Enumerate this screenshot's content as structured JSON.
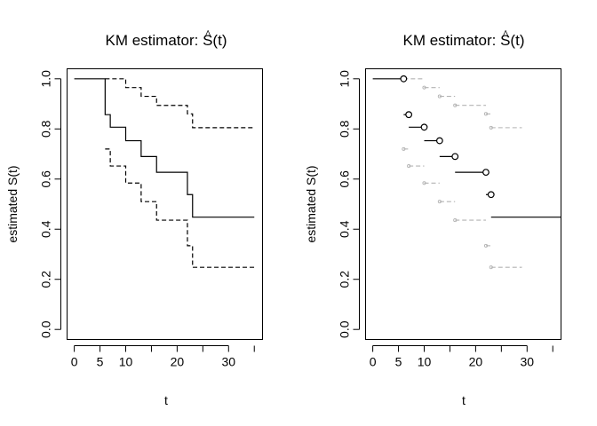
{
  "colors": {
    "line": "#000000",
    "ghost": "#b3b3b3",
    "background": "#ffffff"
  },
  "chart_data": [
    {
      "type": "line",
      "title_prefix": "KM estimator: ",
      "title_math_hat": "^",
      "title_math": "S(t)",
      "xlabel": "t",
      "ylabel": "estimated S(t)",
      "xlim": [
        -1.4,
        36.6
      ],
      "ylim": [
        -0.04,
        1.04
      ],
      "xticks": [
        0,
        5,
        10,
        20,
        30
      ],
      "yticks": [
        0.0,
        0.2,
        0.4,
        0.6,
        0.8,
        1.0
      ],
      "grid": false,
      "series": [
        {
          "line_style": "solid",
          "points": [
            [
              0,
              1.0
            ],
            [
              6,
              1.0
            ],
            [
              6,
              0.857
            ],
            [
              7,
              0.857
            ],
            [
              7,
              0.807
            ],
            [
              10,
              0.807
            ],
            [
              10,
              0.753
            ],
            [
              13,
              0.753
            ],
            [
              13,
              0.69
            ],
            [
              16,
              0.69
            ],
            [
              16,
              0.627
            ],
            [
              22,
              0.627
            ],
            [
              22,
              0.538
            ],
            [
              23,
              0.538
            ],
            [
              23,
              0.448
            ],
            [
              35,
              0.448
            ]
          ]
        },
        {
          "line_style": "dashed",
          "points": [
            [
              6,
              1.0
            ],
            [
              10,
              1.0
            ],
            [
              10,
              0.965
            ],
            [
              13,
              0.965
            ],
            [
              13,
              0.93
            ],
            [
              16,
              0.93
            ],
            [
              16,
              0.894
            ],
            [
              22,
              0.894
            ],
            [
              22,
              0.86
            ],
            [
              23,
              0.86
            ],
            [
              23,
              0.805
            ],
            [
              35,
              0.805
            ]
          ]
        },
        {
          "line_style": "dashed",
          "points": [
            [
              6,
              0.72
            ],
            [
              7,
              0.72
            ],
            [
              7,
              0.652
            ],
            [
              10,
              0.652
            ],
            [
              10,
              0.584
            ],
            [
              13,
              0.584
            ],
            [
              13,
              0.51
            ],
            [
              16,
              0.51
            ],
            [
              16,
              0.436
            ],
            [
              22,
              0.436
            ],
            [
              22,
              0.334
            ],
            [
              23,
              0.334
            ],
            [
              23,
              0.248
            ],
            [
              35,
              0.248
            ]
          ]
        }
      ]
    },
    {
      "type": "line",
      "title_prefix": "KM estimator: ",
      "title_math_hat": "^",
      "title_math": "S(t)",
      "xlabel": "t",
      "ylabel": "estimated S(t)",
      "xlim": [
        -1.4,
        36.6
      ],
      "ylim": [
        -0.04,
        1.04
      ],
      "xticks": [
        0,
        5,
        10,
        20,
        30
      ],
      "yticks": [
        0.0,
        0.2,
        0.4,
        0.6,
        0.8,
        1.0
      ],
      "grid": false,
      "segments": [
        [
          0,
          6,
          1.0
        ],
        [
          6,
          7,
          0.857
        ],
        [
          7,
          10,
          0.807
        ],
        [
          10,
          13,
          0.753
        ],
        [
          13,
          16,
          0.69
        ],
        [
          16,
          22,
          0.627
        ],
        [
          22,
          23,
          0.538
        ],
        [
          23,
          36.6,
          0.448
        ]
      ],
      "circles": [
        [
          6,
          1.0
        ],
        [
          7,
          0.857
        ],
        [
          10,
          0.807
        ],
        [
          13,
          0.753
        ],
        [
          16,
          0.69
        ],
        [
          22,
          0.627
        ],
        [
          23,
          0.538
        ]
      ],
      "ghost_upper": [
        [
          6,
          10,
          1.0
        ],
        [
          10,
          13,
          0.965
        ],
        [
          13,
          16,
          0.93
        ],
        [
          16,
          22,
          0.894
        ],
        [
          22,
          23,
          0.86
        ],
        [
          23,
          29,
          0.805
        ]
      ],
      "ghost_lower": [
        [
          6,
          7,
          0.72
        ],
        [
          7,
          10,
          0.652
        ],
        [
          10,
          13,
          0.584
        ],
        [
          13,
          16,
          0.51
        ],
        [
          16,
          22,
          0.436
        ],
        [
          22,
          23,
          0.334
        ],
        [
          23,
          29,
          0.248
        ]
      ]
    }
  ]
}
